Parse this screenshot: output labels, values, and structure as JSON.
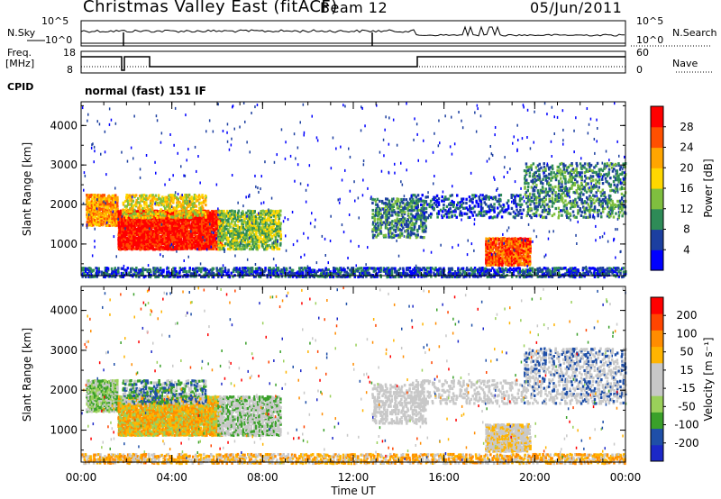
{
  "header": {
    "station": "Christmas Valley East (fitACF)",
    "beam": "Beam 12",
    "date": "05/Jun/2011"
  },
  "noise_panel": {
    "left_label": "N.Sky",
    "right_label": "N.Search",
    "left_ticks": [
      "10^5",
      "10^0"
    ],
    "right_ticks": [
      "10^5",
      "10^0"
    ]
  },
  "freq_panel": {
    "left_label": "Freq.",
    "left_unit": "[MHz]",
    "right_label": "Nave",
    "left_ticks": [
      "18",
      "8"
    ],
    "right_ticks": [
      "60",
      "0"
    ]
  },
  "cpid": {
    "label": "CPID",
    "text": "normal (fast) 151 IF"
  },
  "colors": {
    "power_scale": [
      "#0000ff",
      "#1c3fa0",
      "#2e8b57",
      "#7fbf3f",
      "#ffd700",
      "#ffa500",
      "#ff5000",
      "#ff0000"
    ],
    "velocity_scale": [
      "#1c28c8",
      "#1f4fa8",
      "#3aa02a",
      "#9ad05a",
      "#c8c8c8",
      "#c8c8c8",
      "#ffb400",
      "#ff8c00",
      "#ff4500",
      "#ff0000"
    ]
  },
  "chart_data": [
    {
      "type": "heatmap",
      "name": "power",
      "ylabel": "Slant Range [km]",
      "xlabel": "",
      "ylim": [
        200,
        4600
      ],
      "yticks": [
        "1000",
        "2000",
        "3000",
        "4000"
      ],
      "xticks": [
        "00:00",
        "04:00",
        "08:00",
        "12:00",
        "16:00",
        "20:00",
        "00:00"
      ],
      "colorbar": {
        "label": "Power [dB]",
        "ticks": [
          "4",
          "8",
          "12",
          "16",
          "20",
          "24",
          "28"
        ],
        "range": [
          0,
          32
        ]
      }
    },
    {
      "type": "heatmap",
      "name": "velocity",
      "ylabel": "Slant Range [km]",
      "xlabel": "Time UT",
      "ylim": [
        200,
        4600
      ],
      "yticks": [
        "1000",
        "2000",
        "3000",
        "4000"
      ],
      "xticks": [
        "00:00",
        "04:00",
        "08:00",
        "12:00",
        "16:00",
        "20:00",
        "00:00"
      ],
      "colorbar": {
        "label": "Velocity [m s⁻¹]",
        "ticks": [
          "200",
          "100",
          "50",
          "15",
          "-15",
          "-50",
          "-100",
          "-200"
        ],
        "range": [
          -250,
          250
        ]
      }
    }
  ]
}
